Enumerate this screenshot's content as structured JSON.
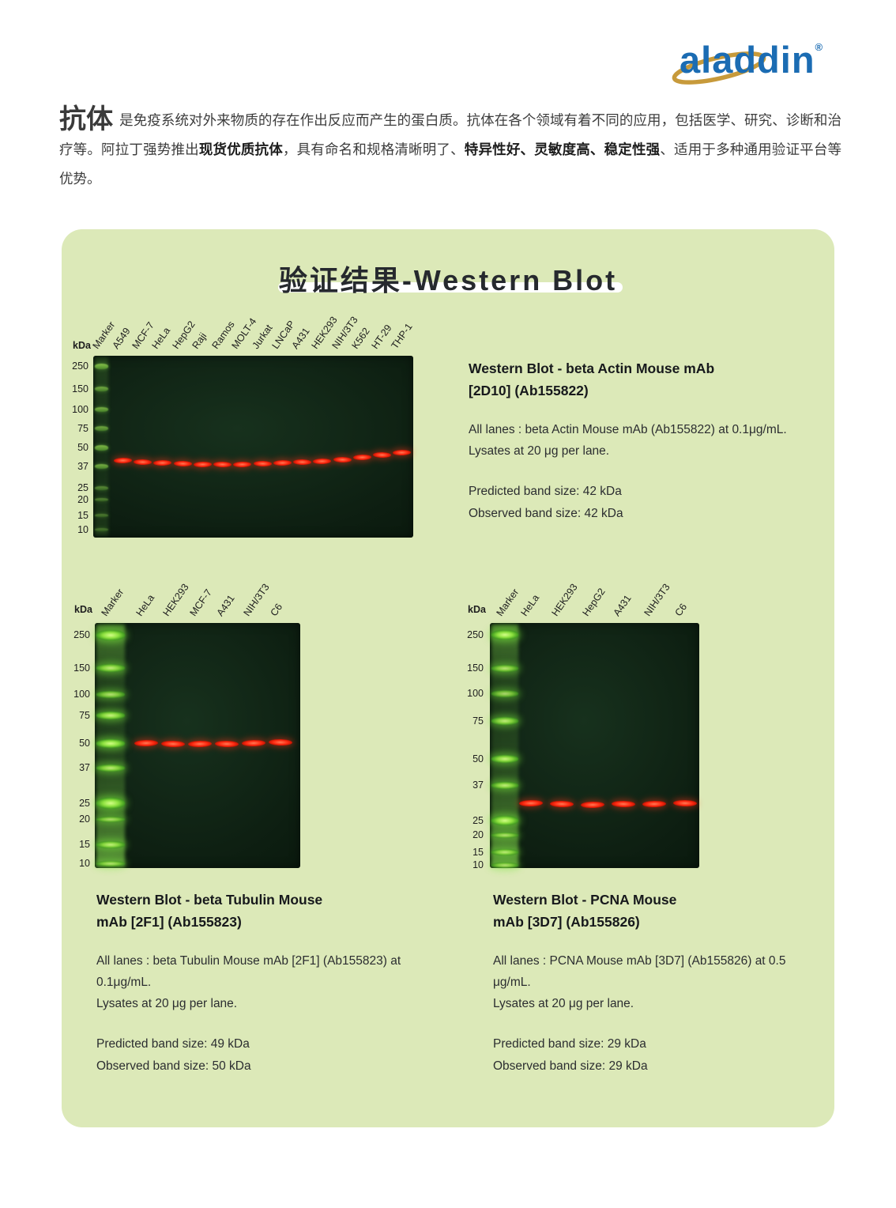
{
  "logo": {
    "text": "aladdin",
    "reg": "®",
    "brand_color": "#1b6cb3",
    "swirl_color": "#c79a3b"
  },
  "intro": {
    "heading": "抗体",
    "seg1": "是免疫系统对外来物质的存在作出反应而产生的蛋白质。抗体在各个领域有着不同的应用，包括医学、研究、诊断和治疗等。阿拉丁强势推出",
    "bold1": "现货优质抗体",
    "seg2": "，具有命名和规格清晰明了、",
    "bold2": "特异性好、灵敏度高、稳定性强",
    "seg3": "、适用于多种通用验证平台等优势。"
  },
  "panel": {
    "title": "验证结果-Western Blot",
    "bg": "#dce9b8"
  },
  "blots": [
    {
      "kda": "kDa",
      "lanes": [
        "Marker",
        "A549",
        "MCF-7",
        "HeLa",
        "HepG2",
        "Raji",
        "Ramos",
        "MOLT-4",
        "Jurkat",
        "LNCaP",
        "A431",
        "HEK293",
        "NIH/3T3",
        "K562",
        "HT-29",
        "THP-1"
      ],
      "mw": [
        "250",
        "150",
        "100",
        "75",
        "50",
        "37",
        "25",
        "20",
        "15",
        "10"
      ],
      "band_kda": 42,
      "title1": "Western Blot - beta Actin Mouse mAb",
      "title2": "[2D10] (Ab155822)",
      "desc1": "All lanes : beta Actin Mouse mAb (Ab155822) at 0.1μg/mL.",
      "desc2": "Lysates at 20 μg per lane.",
      "predicted": "Predicted band size: 42 kDa",
      "observed": "Observed band size: 42 kDa"
    },
    {
      "kda": "kDa",
      "lanes": [
        "Marker",
        "HeLa",
        "HEK293",
        "MCF-7",
        "A431",
        "NIH/3T3",
        "C6"
      ],
      "mw": [
        "250",
        "150",
        "100",
        "75",
        "50",
        "37",
        "25",
        "20",
        "15",
        "10"
      ],
      "band_kda": 50,
      "title1": "Western Blot - beta Tubulin Mouse",
      "title2": "mAb [2F1] (Ab155823)",
      "desc1": "All lanes : beta Tubulin Mouse mAb [2F1] (Ab155823) at 0.1μg/mL.",
      "desc2": "Lysates at 20 μg per lane.",
      "predicted": "Predicted band size: 49 kDa",
      "observed": "Observed band size: 50 kDa"
    },
    {
      "kda": "kDa",
      "lanes": [
        "Marker",
        "HeLa",
        "HEK293",
        "HepG2",
        "A431",
        "NIH/3T3",
        "C6"
      ],
      "mw": [
        "250",
        "150",
        "100",
        "75",
        "50",
        "37",
        "25",
        "20",
        "15",
        "10"
      ],
      "band_kda": 29,
      "title1": "Western Blot - PCNA Mouse",
      "title2": "mAb [3D7] (Ab155826)",
      "desc1": "All lanes : PCNA Mouse mAb [3D7] (Ab155826) at 0.5 μg/mL.",
      "desc2": "Lysates at 20 μg per lane.",
      "predicted": "Predicted band size: 29 kDa",
      "observed": "Observed band size: 29 kDa"
    }
  ]
}
